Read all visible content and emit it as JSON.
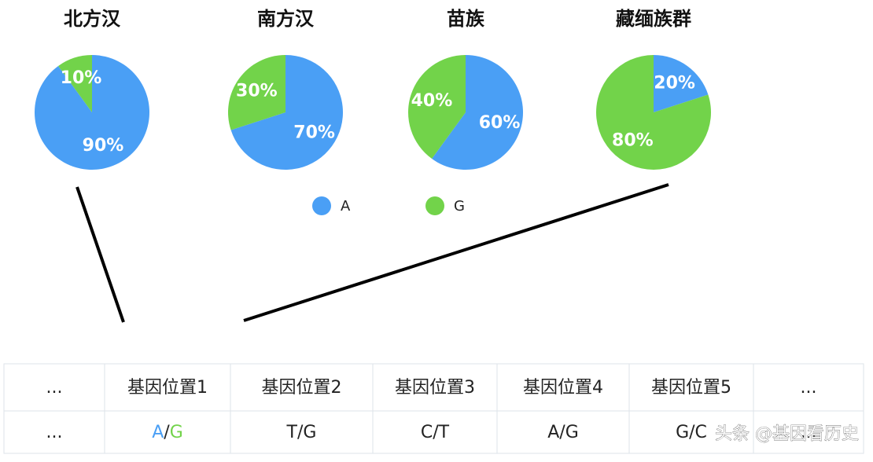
{
  "chart_data": [
    {
      "type": "pie",
      "title": "北方汉",
      "values": [
        90,
        10
      ],
      "value_labels": [
        "90%",
        "10%"
      ]
    },
    {
      "type": "pie",
      "title": "南方汉",
      "values": [
        70,
        30
      ],
      "value_labels": [
        "70%",
        "30%"
      ]
    },
    {
      "type": "pie",
      "title": "苗族",
      "values": [
        60,
        40
      ],
      "value_labels": [
        "60%",
        "40%"
      ]
    },
    {
      "type": "pie",
      "title": "藏缅族群",
      "values": [
        20,
        80
      ],
      "value_labels": [
        "20%",
        "80%"
      ]
    }
  ],
  "legend": {
    "labels": [
      "A",
      "G"
    ],
    "colors": [
      "#4a9ff5",
      "#72d34a"
    ]
  },
  "table": {
    "rows": [
      [
        "...",
        "基因位置1",
        "基因位置2",
        "基因位置3",
        "基因位置4",
        "基因位置5",
        "..."
      ],
      [
        "...",
        [
          "A",
          "/",
          "G"
        ],
        "T/G",
        "C/T",
        "A/G",
        "G/C",
        "..."
      ]
    ]
  },
  "watermark": "头条 @基因看历史"
}
